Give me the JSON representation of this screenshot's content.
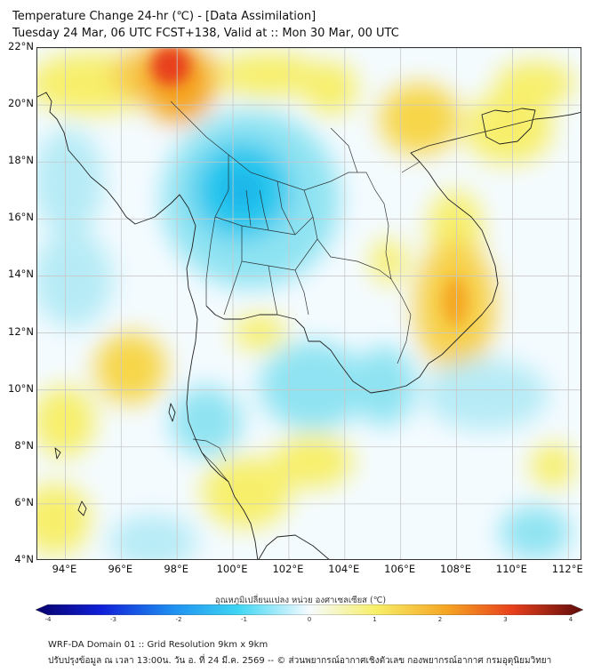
{
  "header": {
    "title": "Temperature Change 24-hr (℃) - [Data Assimilation]",
    "subtitle": "Tuesday 24 Mar, 06 UTC FCST+138, Valid at :: Mon 30 Mar, 00 UTC"
  },
  "map": {
    "lat_range": [
      4,
      22
    ],
    "lon_range": [
      93,
      112.5
    ],
    "lat_labels": [
      "22°N",
      "20°N",
      "18°N",
      "16°N",
      "14°N",
      "12°N",
      "10°N",
      "8°N",
      "6°N",
      "4°N"
    ],
    "lat_values": [
      22,
      20,
      18,
      16,
      14,
      12,
      10,
      8,
      6,
      4
    ],
    "lon_labels": [
      "94°E",
      "96°E",
      "98°E",
      "100°E",
      "102°E",
      "104°E",
      "106°E",
      "108°E",
      "110°E",
      "112°E"
    ],
    "lon_values": [
      94,
      96,
      98,
      100,
      102,
      104,
      106,
      108,
      110,
      112
    ],
    "colors": {
      "warm": "#f5a623",
      "hot": "#e8401c",
      "yellow": "#f7ef6a",
      "cool": "#8fe3f2",
      "cold": "#27c6ee",
      "land_line": "#222222",
      "grid": "#c8c8c8"
    }
  },
  "colorbar": {
    "title": "อุณหภูมิเปลี่ยนแปลง หน่วย องศาเซลเซียส (℃)",
    "range": [
      -4,
      4
    ],
    "ticks": [
      "-4",
      "-3",
      "-2",
      "-1",
      "0",
      "1",
      "2",
      "3",
      "4"
    ],
    "tick_values": [
      -4,
      -3,
      -2,
      -1,
      0,
      1,
      2,
      3,
      4
    ]
  },
  "footer": {
    "line1": "WRF-DA Domain 01 :: Grid Resolution 9km x 9km",
    "line2": "ปรับปรุงข้อมูล ณ เวลา 13:00น. วัน อ. ที่ 24 มี.ค. 2569 -- © ส่วนพยากรณ์อากาศเชิงตัวเลข กองพยากรณ์อากาศ กรมอุตุนิยมวิทยา"
  }
}
